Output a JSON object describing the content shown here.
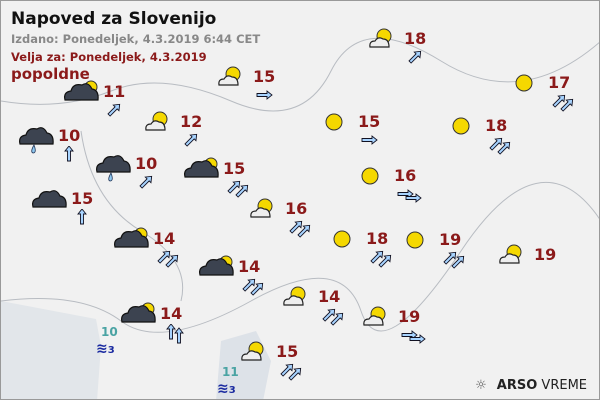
{
  "header": {
    "title": "Napoved za Slovenijo",
    "issued": "Izdano: Ponedeljek, 4.3.2019 6:44 CET",
    "valid": "Velja za: Ponedeljek, 4.3.2019",
    "period": "popoldne"
  },
  "colors": {
    "temp": "#8b1a1a",
    "sea_temp": "#4aa3a3",
    "waves": "#1a2aa0",
    "sun": "#f5d800",
    "dark_cloud": "#3c4350"
  },
  "stations": [
    {
      "temp": "18",
      "icon": "partly-cloudy",
      "wind_dir": "NE",
      "wind_strength": 1
    },
    {
      "temp": "15",
      "icon": "partly-cloudy",
      "wind_dir": "E",
      "wind_strength": 1
    },
    {
      "temp": "11",
      "icon": "mostly-cloudy",
      "wind_dir": "NE",
      "wind_strength": 1
    },
    {
      "temp": "12",
      "icon": "partly-cloudy",
      "wind_dir": "NE",
      "wind_strength": 1
    },
    {
      "temp": "10",
      "icon": "overcast-rain",
      "wind_dir": "N",
      "wind_strength": 1
    },
    {
      "temp": "10",
      "icon": "overcast-rain",
      "wind_dir": "NE",
      "wind_strength": 1
    },
    {
      "temp": "15",
      "icon": "mostly-cloudy",
      "wind_dir": "NE",
      "wind_strength": 2
    },
    {
      "temp": "15",
      "icon": "overcast",
      "wind_dir": "N",
      "wind_strength": 1
    },
    {
      "temp": "16",
      "icon": "partly-cloudy",
      "wind_dir": "NE",
      "wind_strength": 2
    },
    {
      "temp": "14",
      "icon": "mostly-cloudy",
      "wind_dir": "NE",
      "wind_strength": 2
    },
    {
      "temp": "14",
      "icon": "mostly-cloudy",
      "wind_dir": "NE",
      "wind_strength": 2
    },
    {
      "temp": "14",
      "icon": "mostly-cloudy",
      "wind_dir": "N",
      "wind_strength": 2
    },
    {
      "temp": "15",
      "icon": "clear",
      "wind_dir": "E",
      "wind_strength": 1
    },
    {
      "temp": "16",
      "icon": "clear",
      "wind_dir": "E",
      "wind_strength": 2
    },
    {
      "temp": "18",
      "icon": "clear",
      "wind_dir": "NE",
      "wind_strength": 2
    },
    {
      "temp": "19",
      "icon": "clear",
      "wind_dir": "NE",
      "wind_strength": 2
    },
    {
      "temp": "18",
      "icon": "clear",
      "wind_dir": "NE",
      "wind_strength": 2
    },
    {
      "temp": "17",
      "icon": "clear",
      "wind_dir": "NE",
      "wind_strength": 2
    },
    {
      "temp": "19",
      "icon": "partly-cloudy",
      "wind_dir": "",
      "wind_strength": 0
    },
    {
      "temp": "14",
      "icon": "partly-cloudy",
      "wind_dir": "NE",
      "wind_strength": 2
    },
    {
      "temp": "19",
      "icon": "partly-cloudy",
      "wind_dir": "E",
      "wind_strength": 2
    },
    {
      "temp": "15",
      "icon": "partly-cloudy",
      "wind_dir": "NE",
      "wind_strength": 2
    }
  ],
  "sea": [
    {
      "temp": "10",
      "waves": "3"
    },
    {
      "temp": "11",
      "waves": "3"
    }
  ],
  "logo": {
    "bold": "ARSO",
    "light": " VREME"
  }
}
